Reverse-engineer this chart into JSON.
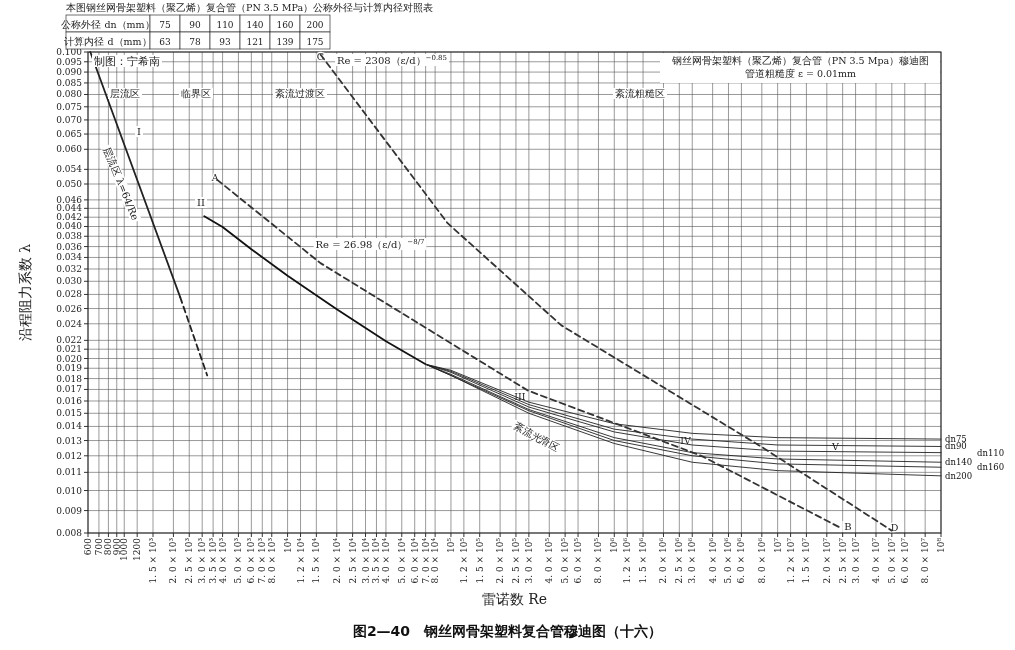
{
  "chart_data": {
    "type": "line",
    "title": "钢丝网骨架塑料（聚乙烯）复合管（PN 3.5 Mpa）穆迪图",
    "subtitle": "管道粗糙度 ε = 0.01mm",
    "xlabel": "雷诺数 Re",
    "ylabel": "沿程阻力系数 λ",
    "log": "xy",
    "grid": true,
    "xlim": [
      600,
      100000000
    ],
    "ylim": [
      0.008,
      0.1
    ],
    "xticks": [
      600,
      700,
      800,
      900,
      1000,
      1200,
      {
        "value": 1500,
        "label": "1. 5 × 10³"
      },
      {
        "value": 2000,
        "label": "2. 0 × 10³"
      },
      {
        "value": 2500,
        "label": "2. 5 × 10³"
      },
      {
        "value": 3000,
        "label": "3. 0 × 10³"
      },
      {
        "value": 3500,
        "label": "3. 5 × 10³"
      },
      {
        "value": 4000,
        "label": "4. 0 × 10³"
      },
      {
        "value": 5000,
        "label": "5. 0 × 10³"
      },
      {
        "value": 6000,
        "label": "6. 0 × 10³"
      },
      {
        "value": 7000,
        "label": "7. 0 × 10³"
      },
      {
        "value": 8000,
        "label": "8. 0 × 10³"
      },
      {
        "value": 10000,
        "label": "10⁴"
      },
      {
        "value": 12000,
        "label": "1. 2 × 10⁴"
      },
      {
        "value": 15000,
        "label": "1. 5 × 10⁴"
      },
      {
        "value": 20000,
        "label": "2. 0 × 10⁴"
      },
      {
        "value": 25000,
        "label": "2. 5 × 10⁴"
      },
      {
        "value": 30000,
        "label": "3. 0 × 10⁴"
      },
      {
        "value": 35000,
        "label": "3. 5 × 10⁴"
      },
      {
        "value": 40000,
        "label": "4. 0 × 10⁴"
      },
      {
        "value": 50000,
        "label": "5. 0 × 10⁴"
      },
      {
        "value": 60000,
        "label": "6. 0 × 10⁴"
      },
      {
        "value": 70000,
        "label": "7. 0 × 10⁴"
      },
      {
        "value": 80000,
        "label": "8. 0 × 10⁴"
      },
      {
        "value": 100000,
        "label": "10⁵"
      },
      {
        "value": 120000,
        "label": "1. 2 × 10⁵"
      },
      {
        "value": 150000,
        "label": "1. 5 × 10⁵"
      },
      {
        "value": 200000,
        "label": "2. 0 × 10⁵"
      },
      {
        "value": 250000,
        "label": "2. 5 × 10⁵"
      },
      {
        "value": 300000,
        "label": "3. 0 × 10⁵"
      },
      {
        "value": 400000,
        "label": "4. 0 × 10⁵"
      },
      {
        "value": 500000,
        "label": "5. 0 × 10⁵"
      },
      {
        "value": 600000,
        "label": "6. 0 × 10⁵"
      },
      {
        "value": 800000,
        "label": "8. 0 × 10⁵"
      },
      {
        "value": 1000000,
        "label": "10⁶"
      },
      {
        "value": 1200000,
        "label": "1. 2 × 10⁶"
      },
      {
        "value": 1500000,
        "label": "1. 5 × 10⁶"
      },
      {
        "value": 2000000,
        "label": "2. 0 × 10⁶"
      },
      {
        "value": 2500000,
        "label": "2. 5 × 10⁶"
      },
      {
        "value": 3000000,
        "label": "3. 0 × 10⁶"
      },
      {
        "value": 4000000,
        "label": "4. 0 × 10⁶"
      },
      {
        "value": 5000000,
        "label": "5. 0 × 10⁶"
      },
      {
        "value": 6000000,
        "label": "6. 0 × 10⁶"
      },
      {
        "value": 8000000,
        "label": "8. 0 × 10⁶"
      },
      {
        "value": 10000000,
        "label": "10⁷"
      },
      {
        "value": 12000000,
        "label": "1. 2 × 10⁷"
      },
      {
        "value": 15000000,
        "label": "1. 5 × 10⁷"
      },
      {
        "value": 20000000,
        "label": "2. 0 × 10⁷"
      },
      {
        "value": 25000000,
        "label": "2. 5 × 10⁷"
      },
      {
        "value": 30000000,
        "label": "3. 0 × 10⁷"
      },
      {
        "value": 40000000,
        "label": "4. 0 × 10⁷"
      },
      {
        "value": 50000000,
        "label": "5. 0 × 10⁷"
      },
      {
        "value": 60000000,
        "label": "6. 0 × 10⁷"
      },
      {
        "value": 80000000,
        "label": "8. 0 × 10⁷"
      },
      {
        "value": 100000000,
        "label": "10⁸"
      }
    ],
    "yticks": [
      {
        "value": 0.1,
        "label": "0.100"
      },
      {
        "value": 0.095,
        "label": "0.095"
      },
      {
        "value": 0.09,
        "label": "0.090"
      },
      {
        "value": 0.085,
        "label": "0.085"
      },
      {
        "value": 0.08,
        "label": "0.080"
      },
      {
        "value": 0.075,
        "label": "0.075"
      },
      {
        "value": 0.07,
        "label": "0.070"
      },
      {
        "value": 0.065,
        "label": "0.065"
      },
      {
        "value": 0.06,
        "label": "0.060"
      },
      {
        "value": 0.054,
        "label": "0.054"
      },
      {
        "value": 0.05,
        "label": "0.050"
      },
      {
        "value": 0.046,
        "label": "0.046"
      },
      {
        "value": 0.044,
        "label": "0.044"
      },
      {
        "value": 0.042,
        "label": "0.042"
      },
      {
        "value": 0.04,
        "label": "0.040"
      },
      {
        "value": 0.038,
        "label": "0.038"
      },
      {
        "value": 0.036,
        "label": "0.036"
      },
      {
        "value": 0.034,
        "label": "0.034"
      },
      {
        "value": 0.032,
        "label": "0.032"
      },
      {
        "value": 0.03,
        "label": "0.030"
      },
      {
        "value": 0.028,
        "label": "0.028"
      },
      {
        "value": 0.026,
        "label": "0.026"
      },
      {
        "value": 0.024,
        "label": "0.024"
      },
      {
        "value": 0.022,
        "label": "0.022"
      },
      {
        "value": 0.021,
        "label": "0.021"
      },
      {
        "value": 0.02,
        "label": "0.020"
      },
      {
        "value": 0.019,
        "label": "0.019"
      },
      {
        "value": 0.018,
        "label": "0.018"
      },
      {
        "value": 0.017,
        "label": "0.017"
      },
      {
        "value": 0.016,
        "label": "0.016"
      },
      {
        "value": 0.015,
        "label": "0.015"
      },
      {
        "value": 0.014,
        "label": "0.014"
      },
      {
        "value": 0.013,
        "label": "0.013"
      },
      {
        "value": 0.012,
        "label": "0.012"
      },
      {
        "value": 0.011,
        "label": "0.011"
      },
      {
        "value": 0.01,
        "label": "0.010"
      },
      {
        "value": 0.009,
        "label": "0.009"
      },
      {
        "value": 0.008,
        "label": "0.008"
      }
    ],
    "series": [
      {
        "color": "#222222",
        "line_style": "solid",
        "x": [
          620,
          2200
        ],
        "values": [
          0.1,
          0.0276
        ]
      },
      {
        "color": "#222222",
        "line_style": "dashed",
        "x": [
          2200,
          3220
        ],
        "values": [
          0.0276,
          0.0183
        ]
      },
      {
        "color": "#111111",
        "line_style": "solid",
        "x": [
          3090,
          4000,
          6000,
          10000,
          20000,
          40000,
          70000
        ],
        "values": [
          0.0422,
          0.0399,
          0.0355,
          0.0309,
          0.0259,
          0.0219,
          0.0194
        ]
      },
      {
        "name": "dn75",
        "color": "#222222",
        "line_style": "solid",
        "x": [
          70000,
          100000,
          300000,
          1000000,
          3000000,
          10000000,
          100000000
        ],
        "values": [
          0.0194,
          0.0188,
          0.0159,
          0.0142,
          0.0135,
          0.0132,
          0.0131
        ]
      },
      {
        "name": "dn90",
        "color": "#222222",
        "line_style": "solid",
        "x": [
          70000,
          100000,
          300000,
          1000000,
          3000000,
          10000000,
          100000000
        ],
        "values": [
          0.0194,
          0.0187,
          0.0157,
          0.0138,
          0.0131,
          0.0127,
          0.0126
        ]
      },
      {
        "name": "dn110",
        "color": "#222222",
        "line_style": "solid",
        "x": [
          70000,
          100000,
          300000,
          1000000,
          3000000,
          10000000,
          100000000
        ],
        "values": [
          0.0194,
          0.0186,
          0.0155,
          0.0136,
          0.0127,
          0.0123,
          0.0122
        ]
      },
      {
        "name": "dn140",
        "color": "#222222",
        "line_style": "solid",
        "x": [
          70000,
          100000,
          300000,
          1000000,
          3000000,
          10000000,
          100000000
        ],
        "values": [
          0.0194,
          0.0184,
          0.0153,
          0.0132,
          0.0122,
          0.0118,
          0.0116
        ]
      },
      {
        "name": "dn160",
        "color": "#222222",
        "line_style": "solid",
        "x": [
          70000,
          100000,
          300000,
          1000000,
          3000000,
          10000000,
          100000000
        ],
        "values": [
          0.0194,
          0.0183,
          0.0152,
          0.013,
          0.012,
          0.0115,
          0.0113
        ]
      },
      {
        "name": "dn200",
        "color": "#222222",
        "line_style": "solid",
        "x": [
          70000,
          100000,
          300000,
          1000000,
          3000000,
          10000000,
          100000000
        ],
        "values": [
          0.0194,
          0.0183,
          0.015,
          0.0128,
          0.0116,
          0.0111,
          0.0108
        ]
      },
      {
        "color": "#333333",
        "line_style": "dashed",
        "x": [
          3710,
          15900,
          296000,
          3410000,
          24600000
        ],
        "values": [
          0.0511,
          0.033,
          0.0169,
          0.012,
          0.0082
        ]
      },
      {
        "color": "#333333",
        "line_style": "dashed",
        "x": [
          15900,
          95400,
          474000,
          7900000,
          50000000
        ],
        "values": [
          0.0987,
          0.0407,
          0.0238,
          0.0126,
          0.0081
        ]
      }
    ],
    "annotations": [
      "本图钢丝网骨架塑料（聚乙烯）复合管（PN 3.5 MPa）公称外径与计算内径对照表",
      "公称外径 dn（mm）",
      "75",
      "90",
      "110",
      "140",
      "160",
      "200",
      "计算内径 d（mm）",
      "63",
      "78",
      "93",
      "121",
      "139",
      "175",
      "制图：宁希南",
      "图2—40　钢丝网骨架塑料复合管穆迪图（十六）",
      "层流区",
      "临界区",
      "紊流过渡区",
      "紊流粗糙区",
      "层流区 λ=64/Re",
      "紊流光滑区",
      "Re = 2308（ε/d）$^{−0.85}$",
      "Re = 26.98（ε/d）$^{−8/7}$",
      "I",
      "II",
      "B",
      {
        "text": "III",
        "x": 264600,
        "y": 0.0163
      },
      {
        "text": "IV",
        "x": 2730000,
        "y": 0.013
      },
      {
        "text": "V",
        "x": 22600000,
        "y": 0.01254
      },
      {
        "text": "A",
        "x": 3600,
        "y": 0.0516
      },
      {
        "text": "C",
        "x": 15900,
        "y": 0.0974
      },
      {
        "text": "D",
        "x": 52000000,
        "y": 0.0082
      }
    ]
  }
}
